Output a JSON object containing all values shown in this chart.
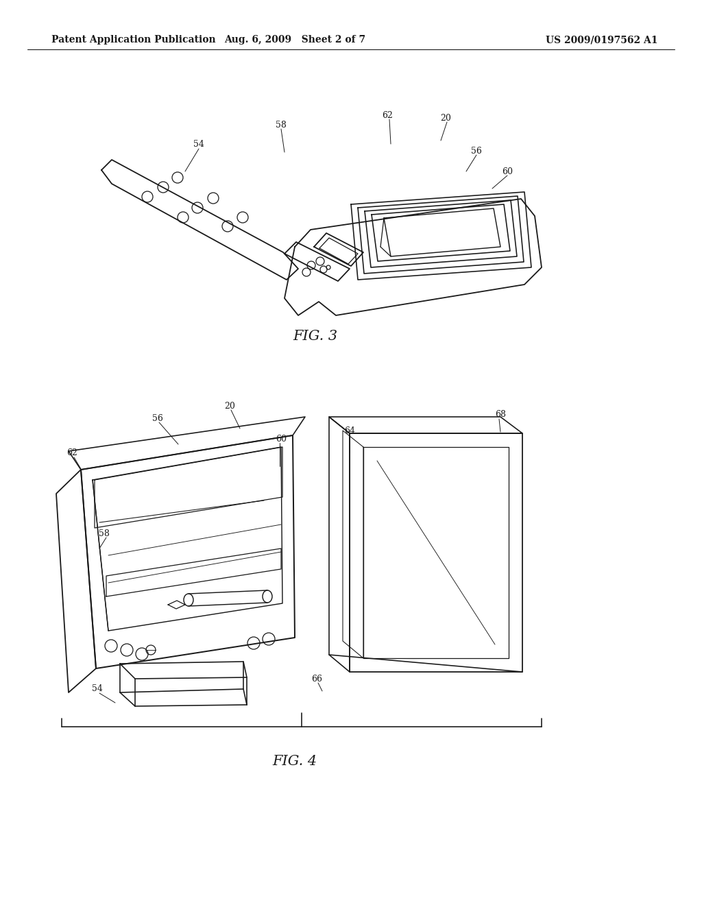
{
  "bg_color": "#ffffff",
  "line_color": "#1a1a1a",
  "header_left": "Patent Application Publication",
  "header_center": "Aug. 6, 2009   Sheet 2 of 7",
  "header_right": "US 2009/0197562 A1",
  "fig3_label": "FIG. 3",
  "fig4_label": "FIG. 4",
  "header_font": 10,
  "fig_label_font": 15,
  "ref_font": 9,
  "line_width": 1.3
}
